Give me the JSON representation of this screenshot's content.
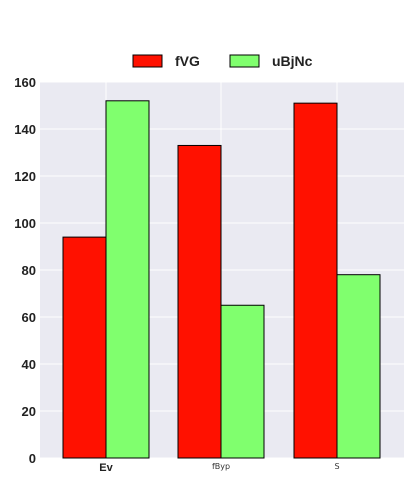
{
  "chart_data": {
    "type": "bar",
    "title": "",
    "xlabel": "",
    "ylabel": "",
    "categories": [
      "Ev",
      "fByp",
      "S"
    ],
    "series": [
      {
        "name": "fVG",
        "values": [
          94,
          133,
          151
        ],
        "color": "#ff1100"
      },
      {
        "name": "uBjNc",
        "values": [
          152,
          65,
          78
        ],
        "color": "#80ff6e"
      }
    ],
    "ylim": [
      0,
      160
    ],
    "yticks": [
      "0",
      "20",
      "40",
      "60",
      "80",
      "100",
      "120",
      "140",
      "160"
    ],
    "grid": true,
    "legend_position": "top-center",
    "plot_background": "#eaeaf2"
  }
}
